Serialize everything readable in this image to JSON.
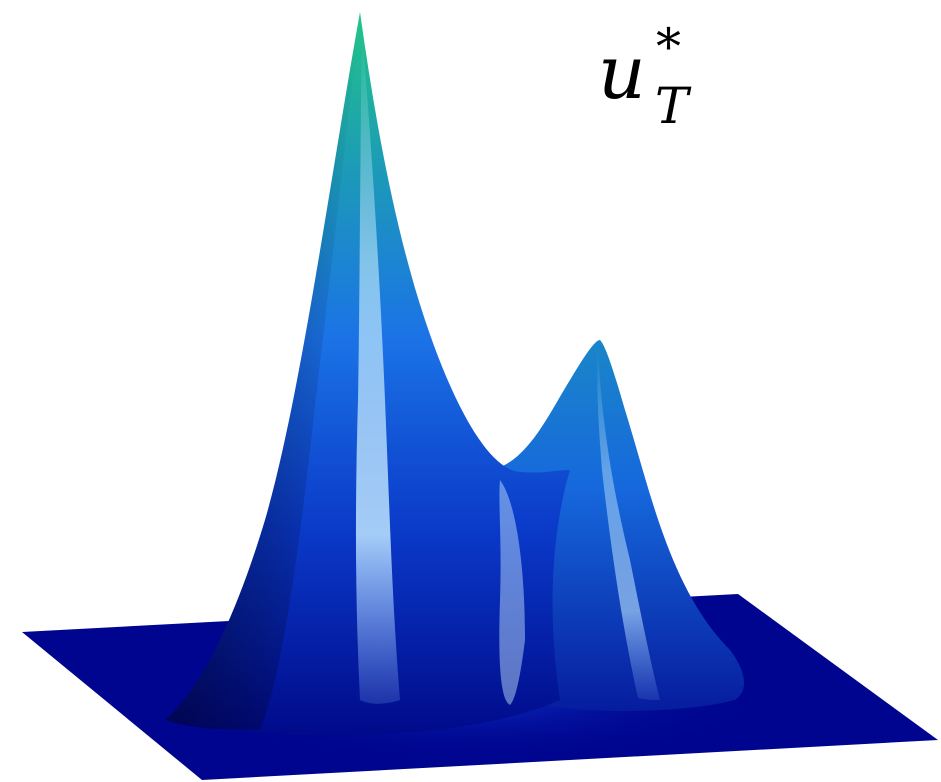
{
  "label": {
    "symbol": "u",
    "subscript": "T",
    "superscript": "*"
  },
  "surface": {
    "plane_color": "#00058f",
    "colormap": [
      "#000a8a",
      "#0a39c8",
      "#1b73e6",
      "#1c9ab8",
      "#22c486"
    ],
    "peaks": [
      {
        "name": "main",
        "relative_height": 1.0
      },
      {
        "name": "secondary",
        "relative_height": 0.45
      }
    ]
  }
}
